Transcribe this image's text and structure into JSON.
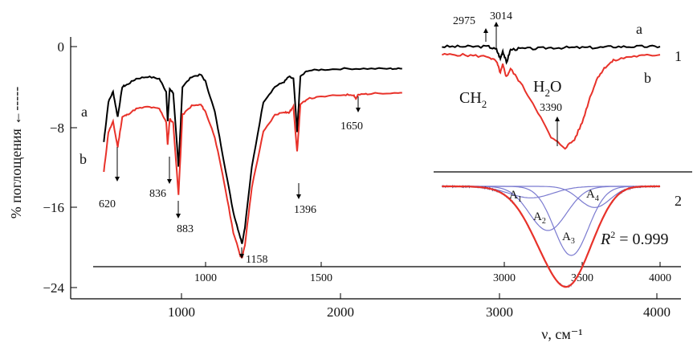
{
  "colors": {
    "series_a": "#000000",
    "series_b": "#e8322a",
    "components": "#7b7bd0",
    "envelope": "#1a1a6b",
    "axis": "#000000"
  },
  "chart_data": [
    {
      "type": "line",
      "panel": "main",
      "ylabel": "% поглощения ←-----",
      "xlabel": "ν, см⁻¹",
      "outer_x_ticks": [
        "1000",
        "2000",
        "3000",
        "4000"
      ],
      "inner_x_ticks": [
        "1000",
        "1500"
      ],
      "y_ticks": [
        "0",
        "−8",
        "−16",
        "−24"
      ],
      "ylim": [
        -24,
        0
      ],
      "xlim": [
        550,
        1850
      ],
      "series": [
        {
          "name": "a",
          "x": [
            560,
            580,
            600,
            620,
            640,
            660,
            700,
            750,
            800,
            830,
            836,
            845,
            860,
            883,
            900,
            940,
            980,
            1000,
            1040,
            1080,
            1120,
            1150,
            1158,
            1170,
            1200,
            1250,
            1300,
            1340,
            1360,
            1380,
            1396,
            1410,
            1440,
            1500,
            1600,
            1700,
            1800,
            1850
          ],
          "y": [
            -9.5,
            -5.5,
            -4.5,
            -7.0,
            -4.0,
            -3.8,
            -3.2,
            -3.0,
            -3.2,
            -4.5,
            -7.5,
            -4.2,
            -4.6,
            -12.0,
            -4.0,
            -3.0,
            -2.8,
            -3.5,
            -6.5,
            -11.5,
            -16.5,
            -19.0,
            -19.6,
            -18.0,
            -12.0,
            -5.5,
            -4.0,
            -3.5,
            -3.0,
            -3.2,
            -8.5,
            -3.0,
            -2.4,
            -2.3,
            -2.2,
            -2.2,
            -2.2,
            -2.2
          ]
        },
        {
          "name": "b",
          "x": [
            560,
            580,
            600,
            620,
            640,
            660,
            700,
            750,
            800,
            830,
            836,
            845,
            860,
            883,
            900,
            940,
            980,
            1000,
            1040,
            1080,
            1120,
            1150,
            1158,
            1170,
            1200,
            1250,
            1300,
            1340,
            1360,
            1380,
            1396,
            1410,
            1440,
            1500,
            1600,
            1640,
            1650,
            1660,
            1700,
            1800,
            1850
          ],
          "y": [
            -12.5,
            -8.5,
            -7.5,
            -10.0,
            -7.0,
            -6.8,
            -6.2,
            -6.0,
            -6.2,
            -7.5,
            -9.8,
            -7.2,
            -7.6,
            -14.8,
            -6.8,
            -5.9,
            -5.8,
            -6.5,
            -9.0,
            -13.5,
            -18.5,
            -20.8,
            -21.0,
            -19.8,
            -14.0,
            -8.5,
            -6.8,
            -6.5,
            -6.6,
            -6.0,
            -10.5,
            -5.8,
            -5.2,
            -5.0,
            -4.8,
            -4.8,
            -5.2,
            -4.8,
            -4.7,
            -4.6,
            -4.6
          ]
        }
      ],
      "annotations": [
        "620",
        "836",
        "883",
        "1158",
        "1396",
        "1650"
      ],
      "series_labels": [
        "a",
        "b"
      ]
    },
    {
      "type": "line",
      "panel": "1",
      "panel_label": "1",
      "xlim": [
        2600,
        4000
      ],
      "series": [
        {
          "name": "a",
          "x": [
            2600,
            2700,
            2800,
            2900,
            2950,
            2975,
            2990,
            3014,
            3040,
            3100,
            3200,
            3300,
            3400,
            3500,
            3600,
            3700,
            3800,
            3900,
            4000
          ],
          "y": [
            0.0,
            0.0,
            0.0,
            0.0,
            -0.3,
            -1.2,
            -0.4,
            -1.6,
            -0.3,
            -0.2,
            -0.2,
            -0.1,
            -0.1,
            -0.1,
            -0.1,
            0.0,
            0.0,
            0.0,
            0.0
          ]
        },
        {
          "name": "b",
          "x": [
            2600,
            2700,
            2800,
            2900,
            2950,
            2975,
            2990,
            3014,
            3040,
            3100,
            3200,
            3300,
            3390,
            3450,
            3500,
            3550,
            3600,
            3650,
            3700,
            3800,
            3900,
            4000
          ],
          "y": [
            -0.8,
            -0.8,
            -0.9,
            -1.0,
            -1.5,
            -2.6,
            -1.8,
            -3.0,
            -2.2,
            -3.5,
            -6.0,
            -9.0,
            -10.0,
            -9.2,
            -7.5,
            -5.0,
            -3.0,
            -2.0,
            -1.4,
            -1.0,
            -0.9,
            -0.8
          ]
        }
      ],
      "annotations": [
        "2975",
        "3014",
        "3390"
      ],
      "band_labels": [
        "CH",
        "H",
        "O"
      ],
      "subscript": "2",
      "series_labels": [
        "a",
        "b"
      ]
    },
    {
      "type": "line",
      "panel": "2",
      "panel_label": "2",
      "x_ticks": [
        "3000",
        "3500",
        "4000"
      ],
      "xlim": [
        2600,
        4000
      ],
      "r2_label": "R",
      "r2_sup": "2",
      "r2_value": " = 0.999",
      "components": [
        {
          "name": "A1",
          "center": 3170,
          "width": 140,
          "height": -1.2
        },
        {
          "name": "A2",
          "center": 3280,
          "width": 120,
          "height": -4.6
        },
        {
          "name": "A3",
          "center": 3430,
          "width": 110,
          "height": -7.2
        },
        {
          "name": "A4",
          "center": 3580,
          "width": 100,
          "height": -2.2
        }
      ],
      "component_labels": [
        "A",
        "A",
        "A",
        "A"
      ],
      "component_subs": [
        "1",
        "2",
        "3",
        "4"
      ]
    }
  ]
}
